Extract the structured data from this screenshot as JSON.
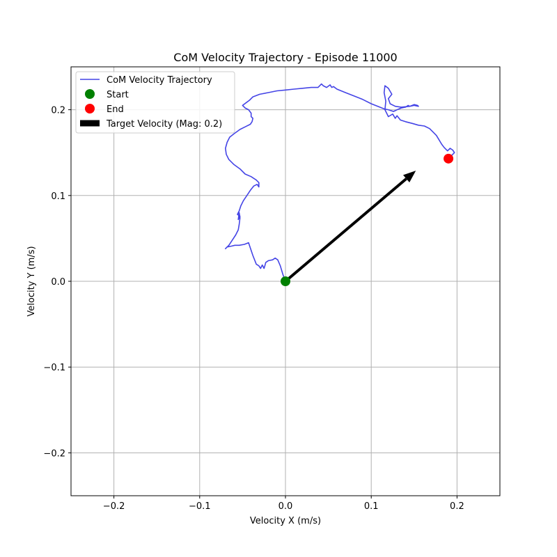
{
  "chart_data": {
    "type": "line",
    "title": "CoM Velocity Trajectory - Episode 11000",
    "xlabel": "Velocity X (m/s)",
    "ylabel": "Velocity Y (m/s)",
    "xlim": [
      -0.25,
      0.25
    ],
    "ylim": [
      -0.25,
      0.25
    ],
    "xticks": [
      -0.2,
      -0.1,
      0.0,
      0.1,
      0.2
    ],
    "yticks": [
      -0.2,
      -0.1,
      0.0,
      0.1,
      0.2
    ],
    "xtick_labels": [
      "−0.2",
      "−0.1",
      "0.0",
      "0.1",
      "0.2"
    ],
    "ytick_labels": [
      "−0.2",
      "−0.1",
      "0.0",
      "0.1",
      "0.2"
    ],
    "grid": true,
    "legend_position": "top-left",
    "legend": [
      {
        "label": "CoM Velocity Trajectory",
        "kind": "line",
        "color": "#4444e6"
      },
      {
        "label": "Start",
        "kind": "marker",
        "color": "#008000"
      },
      {
        "label": "End",
        "kind": "marker",
        "color": "#ff0000"
      },
      {
        "label": "Target Velocity (Mag: 0.2)",
        "kind": "patch",
        "color": "#000000"
      }
    ],
    "series": [
      {
        "color": "#4444e6",
        "x": [
          0.0,
          -0.003,
          -0.006,
          -0.009,
          -0.012,
          -0.015,
          -0.02,
          -0.023,
          -0.024,
          -0.025,
          -0.027,
          -0.029,
          -0.031,
          -0.034,
          -0.038,
          -0.043,
          -0.048,
          -0.054,
          -0.059,
          -0.063,
          -0.068,
          -0.07,
          -0.066,
          -0.062,
          -0.058,
          -0.055,
          -0.054,
          -0.053,
          -0.054,
          -0.055,
          -0.053,
          -0.056,
          -0.054,
          -0.052,
          -0.049,
          -0.045,
          -0.041,
          -0.037,
          -0.033,
          -0.031,
          -0.031,
          -0.034,
          -0.04,
          -0.047,
          -0.053,
          -0.06,
          -0.066,
          -0.069,
          -0.07,
          -0.068,
          -0.065,
          -0.06,
          -0.053,
          -0.047,
          -0.041,
          -0.039,
          -0.038,
          -0.04,
          -0.04,
          -0.043,
          -0.047,
          -0.05,
          -0.046,
          -0.042,
          -0.038,
          -0.03,
          -0.02,
          -0.01,
          0.0,
          0.01,
          0.02,
          0.03,
          0.038,
          0.042,
          0.044,
          0.048,
          0.052,
          0.054,
          0.056,
          0.06,
          0.07,
          0.08,
          0.09,
          0.1,
          0.11,
          0.115,
          0.12,
          0.126,
          0.13,
          0.135,
          0.14,
          0.143,
          0.145,
          0.15,
          0.154,
          0.155,
          0.15,
          0.145,
          0.135,
          0.128,
          0.122,
          0.12,
          0.124,
          0.12,
          0.116,
          0.115,
          0.117,
          0.116,
          0.12,
          0.125,
          0.128,
          0.13,
          0.134,
          0.14,
          0.148,
          0.155,
          0.162,
          0.168,
          0.172,
          0.176,
          0.179,
          0.182,
          0.185,
          0.189,
          0.192,
          0.195,
          0.197,
          0.194,
          0.19
        ],
        "y": [
          0.0,
          0.008,
          0.018,
          0.025,
          0.027,
          0.025,
          0.024,
          0.022,
          0.018,
          0.015,
          0.019,
          0.015,
          0.018,
          0.02,
          0.03,
          0.045,
          0.043,
          0.042,
          0.042,
          0.041,
          0.04,
          0.038,
          0.042,
          0.048,
          0.054,
          0.06,
          0.066,
          0.074,
          0.08,
          0.072,
          0.076,
          0.078,
          0.082,
          0.088,
          0.094,
          0.1,
          0.106,
          0.111,
          0.113,
          0.11,
          0.115,
          0.118,
          0.122,
          0.125,
          0.131,
          0.136,
          0.142,
          0.148,
          0.155,
          0.162,
          0.168,
          0.172,
          0.177,
          0.18,
          0.183,
          0.186,
          0.19,
          0.192,
          0.196,
          0.2,
          0.202,
          0.205,
          0.208,
          0.211,
          0.215,
          0.218,
          0.22,
          0.222,
          0.223,
          0.224,
          0.225,
          0.226,
          0.226,
          0.23,
          0.228,
          0.226,
          0.229,
          0.226,
          0.227,
          0.224,
          0.22,
          0.216,
          0.212,
          0.207,
          0.203,
          0.201,
          0.2,
          0.198,
          0.2,
          0.202,
          0.203,
          0.205,
          0.204,
          0.206,
          0.205,
          0.204,
          0.205,
          0.204,
          0.203,
          0.204,
          0.207,
          0.213,
          0.218,
          0.225,
          0.228,
          0.22,
          0.21,
          0.2,
          0.192,
          0.195,
          0.19,
          0.193,
          0.188,
          0.186,
          0.184,
          0.182,
          0.181,
          0.178,
          0.174,
          0.17,
          0.165,
          0.16,
          0.156,
          0.152,
          0.155,
          0.153,
          0.15,
          0.147,
          0.143
        ]
      }
    ],
    "start_point": {
      "x": 0.0,
      "y": 0.0,
      "color": "#008000"
    },
    "end_point": {
      "x": 0.19,
      "y": 0.143,
      "color": "#ff0000"
    },
    "target_arrow": {
      "x": 0.0,
      "y": 0.0,
      "dx": 0.152,
      "dy": 0.129,
      "color": "#000000"
    }
  }
}
